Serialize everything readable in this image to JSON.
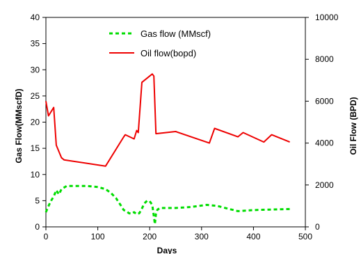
{
  "chart_data": {
    "type": "line",
    "xlabel": "Days",
    "ylabel_left": "Gas Flow(MMscfD)",
    "ylabel_right": "Oil Flow (BPD)",
    "xlim": [
      0,
      500
    ],
    "ylim_left": [
      0,
      40
    ],
    "ylim_right": [
      0,
      10000
    ],
    "x_ticks": [
      "0",
      "100",
      "200",
      "300",
      "400",
      "500"
    ],
    "y_left_ticks": [
      "0",
      "5",
      "10",
      "15",
      "20",
      "25",
      "30",
      "35",
      "40"
    ],
    "y_right_ticks": [
      "0",
      "2000",
      "4000",
      "6000",
      "8000",
      "10000"
    ],
    "grid": false,
    "legend_position": "top-center",
    "series": [
      {
        "name": "Gas flow (MMscf)",
        "axis": "left",
        "color": "#00dd00",
        "style": "dashed",
        "x": [
          0,
          3,
          6,
          10,
          15,
          20,
          25,
          30,
          40,
          60,
          80,
          100,
          115,
          125,
          135,
          145,
          150,
          155,
          160,
          165,
          170,
          175,
          180,
          185,
          190,
          195,
          200,
          205,
          208,
          210,
          212,
          215,
          220,
          250,
          280,
          310,
          330,
          350,
          370,
          400,
          430,
          470
        ],
        "y": [
          2.8,
          3.5,
          4.2,
          5.0,
          5.8,
          7.0,
          6.2,
          7.2,
          7.8,
          7.8,
          7.8,
          7.6,
          7.2,
          6.5,
          5.5,
          4.0,
          3.2,
          3.0,
          2.6,
          2.5,
          2.8,
          2.4,
          2.6,
          3.5,
          4.5,
          5.0,
          4.9,
          4.2,
          2.0,
          0.5,
          2.5,
          3.3,
          3.6,
          3.6,
          3.8,
          4.2,
          4.0,
          3.5,
          3.0,
          3.2,
          3.3,
          3.4
        ]
      },
      {
        "name": "Oil flow(bopd)",
        "axis": "right",
        "color": "#ee0000",
        "style": "solid",
        "x": [
          0,
          5,
          15,
          20,
          30,
          35,
          115,
          150,
          153,
          170,
          175,
          178,
          185,
          205,
          208,
          212,
          250,
          315,
          325,
          370,
          380,
          420,
          435,
          470
        ],
        "y": [
          6000,
          5300,
          5700,
          3900,
          3300,
          3200,
          2900,
          4300,
          4400,
          4200,
          4600,
          4500,
          6900,
          7300,
          7200,
          4450,
          4550,
          4000,
          4700,
          4300,
          4500,
          4050,
          4400,
          4050
        ]
      }
    ]
  }
}
